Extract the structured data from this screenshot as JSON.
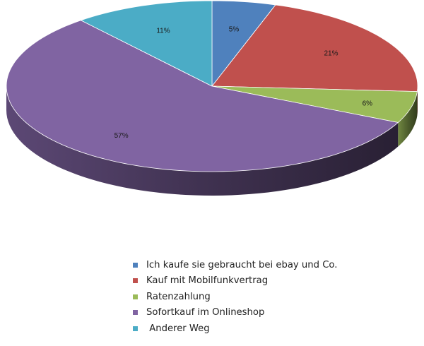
{
  "chart_data": {
    "type": "pie",
    "style": "3d",
    "legend_position": "bottom",
    "slices": [
      {
        "label": "Ich kaufe sie gebraucht bei ebay und Co.",
        "value": 5,
        "value_label": "5%",
        "color": "#4f81bd"
      },
      {
        "label": "Kauf mit Mobilfunkvertrag",
        "value": 21,
        "value_label": "21%",
        "color": "#c0504d"
      },
      {
        "label": "Ratenzahlung",
        "value": 6,
        "value_label": "6%",
        "color": "#9bbb59"
      },
      {
        "label": "Sofortkauf im Onlineshop",
        "value": 57,
        "value_label": "57%",
        "color": "#8064a2"
      },
      {
        "label": " Anderer Weg",
        "value": 11,
        "value_label": "11%",
        "color": "#4bacc6"
      }
    ]
  }
}
